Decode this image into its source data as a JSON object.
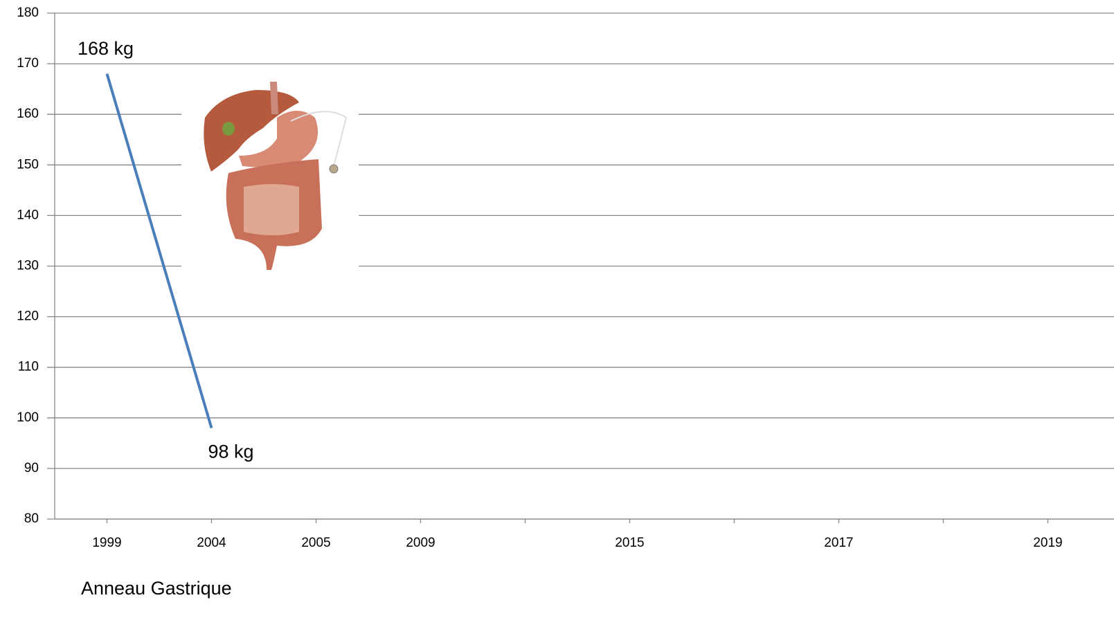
{
  "chart_data": {
    "type": "line",
    "categories": [
      "1999",
      "2004",
      "2005",
      "2009",
      null,
      "2015",
      null,
      "2017",
      null,
      "2019"
    ],
    "series": [
      {
        "color": "#4a7ebb",
        "values": [
          168,
          98,
          null,
          null,
          null,
          null,
          null,
          null,
          null,
          null
        ],
        "value_labels": [
          "168 kg",
          "98 kg",
          null,
          null,
          null,
          null,
          null,
          null,
          null,
          null
        ]
      }
    ],
    "ylim": [
      80,
      180
    ],
    "yticks": [
      80,
      90,
      100,
      110,
      120,
      130,
      140,
      150,
      160,
      170,
      180
    ],
    "grid": true,
    "annotation": "Anneau Gastrique"
  }
}
